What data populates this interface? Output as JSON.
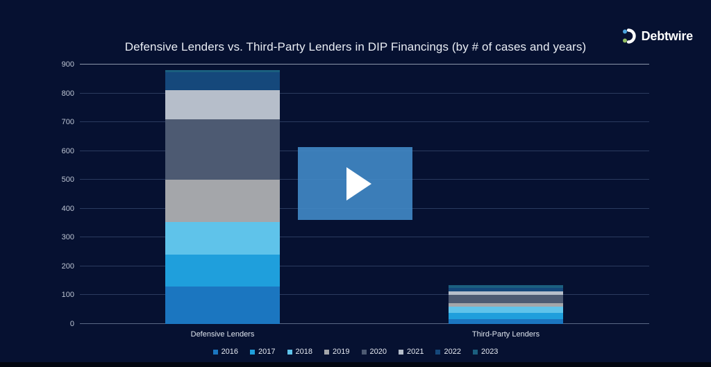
{
  "logo": {
    "text": "Debtwire"
  },
  "play_overlay": {
    "label": "play"
  },
  "chart_data": {
    "type": "bar",
    "stacked": true,
    "title": "Defensive Lenders vs. Third-Party Lenders in DIP Financings (by # of cases and years)",
    "categories": [
      "Defensive Lenders",
      "Third-Party Lenders"
    ],
    "series": [
      {
        "name": "2016",
        "color": "#1b76c0",
        "values": [
          130,
          17
        ]
      },
      {
        "name": "2017",
        "color": "#1f9fdc",
        "values": [
          110,
          22
        ]
      },
      {
        "name": "2018",
        "color": "#5fc3ea",
        "values": [
          115,
          22
        ]
      },
      {
        "name": "2019",
        "color": "#a4a6aa",
        "values": [
          145,
          12
        ]
      },
      {
        "name": "2020",
        "color": "#4d5a72",
        "values": [
          210,
          29
        ]
      },
      {
        "name": "2021",
        "color": "#b6beca",
        "values": [
          100,
          10
        ]
      },
      {
        "name": "2022",
        "color": "#15487b",
        "values": [
          64,
          14
        ]
      },
      {
        "name": "2023",
        "color": "#1b5f7f",
        "values": [
          8,
          10
        ]
      }
    ],
    "totals": [
      882,
      136
    ],
    "y_ticks": [
      0,
      100,
      200,
      300,
      400,
      500,
      600,
      700,
      800,
      900
    ],
    "ylim": [
      0,
      900
    ],
    "xlabel": "",
    "ylabel": "",
    "grid": true,
    "legend_position": "bottom"
  },
  "icon_colors": {
    "logo_dot_top": "#4aa3dc",
    "logo_dot_bottom": "#93bf62",
    "logo_arc": "#ffffff"
  }
}
